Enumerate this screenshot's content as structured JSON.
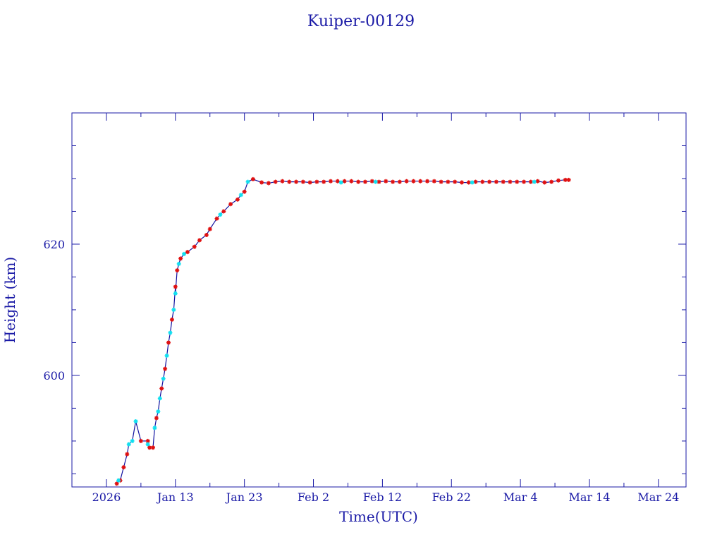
{
  "chart_data": {
    "type": "scatter",
    "title": "Kuiper-00129",
    "xlabel": "Time(UTC)",
    "ylabel": "Height (km)",
    "x_tick_labels": [
      "2026",
      "Jan 13",
      "Jan 23",
      "Feb  2",
      "Feb 12",
      "Feb 22",
      "Mar  4",
      "Mar 14",
      "Mar 24"
    ],
    "x_tick_dates": [
      "2026-01-03",
      "2026-01-13",
      "2026-01-23",
      "2026-02-02",
      "2026-02-12",
      "2026-02-22",
      "2026-03-04",
      "2026-03-14",
      "2026-03-24"
    ],
    "x_minor_tick_dates": [
      "2026-01-08",
      "2026-01-18",
      "2026-01-28",
      "2026-02-07",
      "2026-02-17",
      "2026-02-27",
      "2026-03-09",
      "2026-03-19"
    ],
    "xlim": [
      "2025-12-29",
      "2026-03-28"
    ],
    "y_tick_labels": [
      "600",
      "620"
    ],
    "y_major_ticks": [
      600,
      620
    ],
    "y_minor_ticks": [
      585,
      590,
      595,
      605,
      610,
      615,
      625,
      630,
      635
    ],
    "ylim": [
      583,
      640
    ],
    "grid": false,
    "colors": {
      "axis": "#1a1aa6",
      "line": "#1010a0",
      "marker_red": "#e01010",
      "marker_cyan": "#10e0f0"
    },
    "series": [
      {
        "marker": "red-star",
        "points": [
          [
            "2026-01-04T12:00",
            583.5
          ],
          [
            "2026-01-05T00:00",
            584.0
          ],
          [
            "2026-01-05T12:00",
            586.0
          ],
          [
            "2026-01-06T00:00",
            588.0
          ],
          [
            "2026-01-08T00:00",
            590.0
          ],
          [
            "2026-01-09T00:00",
            590.0
          ],
          [
            "2026-01-09T06:00",
            589.0
          ],
          [
            "2026-01-09T18:00",
            589.0
          ],
          [
            "2026-01-10T06:00",
            593.5
          ],
          [
            "2026-01-11T00:00",
            598.0
          ],
          [
            "2026-01-11T12:00",
            601.0
          ],
          [
            "2026-01-12T00:00",
            605.0
          ],
          [
            "2026-01-12T12:00",
            608.5
          ],
          [
            "2026-01-13T00:00",
            613.5
          ],
          [
            "2026-01-13T06:00",
            616.0
          ],
          [
            "2026-01-13T18:00",
            617.8
          ],
          [
            "2026-01-14T18:00",
            618.8
          ],
          [
            "2026-01-15T18:00",
            619.6
          ],
          [
            "2026-01-16T12:00",
            620.6
          ],
          [
            "2026-01-17T12:00",
            621.4
          ],
          [
            "2026-01-18T00:00",
            622.3
          ],
          [
            "2026-01-19T00:00",
            623.9
          ],
          [
            "2026-01-20T00:00",
            625.0
          ],
          [
            "2026-01-21T00:00",
            626.1
          ],
          [
            "2026-01-22T00:00",
            626.8
          ],
          [
            "2026-01-23T00:00",
            628.0
          ],
          [
            "2026-01-24T06:00",
            629.9
          ],
          [
            "2026-01-25T12:00",
            629.4
          ],
          [
            "2026-01-26T12:00",
            629.3
          ],
          [
            "2026-01-27T12:00",
            629.5
          ],
          [
            "2026-01-28T12:00",
            629.6
          ],
          [
            "2026-01-29T12:00",
            629.5
          ],
          [
            "2026-01-30T12:00",
            629.5
          ],
          [
            "2026-01-31T12:00",
            629.5
          ],
          [
            "2026-02-01T12:00",
            629.4
          ],
          [
            "2026-02-02T12:00",
            629.5
          ],
          [
            "2026-02-03T12:00",
            629.5
          ],
          [
            "2026-02-04T12:00",
            629.6
          ],
          [
            "2026-02-05T12:00",
            629.6
          ],
          [
            "2026-02-06T12:00",
            629.6
          ],
          [
            "2026-02-07T12:00",
            629.6
          ],
          [
            "2026-02-08T12:00",
            629.5
          ],
          [
            "2026-02-09T12:00",
            629.5
          ],
          [
            "2026-02-10T12:00",
            629.6
          ],
          [
            "2026-02-11T12:00",
            629.5
          ],
          [
            "2026-02-12T12:00",
            629.6
          ],
          [
            "2026-02-13T12:00",
            629.5
          ],
          [
            "2026-02-14T12:00",
            629.5
          ],
          [
            "2026-02-15T12:00",
            629.6
          ],
          [
            "2026-02-16T12:00",
            629.6
          ],
          [
            "2026-02-17T12:00",
            629.6
          ],
          [
            "2026-02-18T12:00",
            629.6
          ],
          [
            "2026-02-19T12:00",
            629.6
          ],
          [
            "2026-02-20T12:00",
            629.5
          ],
          [
            "2026-02-21T12:00",
            629.5
          ],
          [
            "2026-02-22T12:00",
            629.5
          ],
          [
            "2026-02-23T12:00",
            629.4
          ],
          [
            "2026-02-24T12:00",
            629.4
          ],
          [
            "2026-02-25T12:00",
            629.5
          ],
          [
            "2026-02-26T12:00",
            629.5
          ],
          [
            "2026-02-27T12:00",
            629.5
          ],
          [
            "2026-02-28T12:00",
            629.5
          ],
          [
            "2026-03-01T12:00",
            629.5
          ],
          [
            "2026-03-02T12:00",
            629.5
          ],
          [
            "2026-03-03T12:00",
            629.5
          ],
          [
            "2026-03-04T12:00",
            629.5
          ],
          [
            "2026-03-05T12:00",
            629.5
          ],
          [
            "2026-03-06T12:00",
            629.6
          ],
          [
            "2026-03-07T12:00",
            629.4
          ],
          [
            "2026-03-08T12:00",
            629.5
          ],
          [
            "2026-03-09T12:00",
            629.7
          ],
          [
            "2026-03-10T12:00",
            629.8
          ],
          [
            "2026-03-11T00:00",
            629.8
          ]
        ]
      },
      {
        "marker": "cyan-star",
        "points": [
          [
            "2026-01-04T18:00",
            584.0
          ],
          [
            "2026-01-06T06:00",
            589.5
          ],
          [
            "2026-01-06T18:00",
            590.0
          ],
          [
            "2026-01-07T06:00",
            593.0
          ],
          [
            "2026-01-09T00:00",
            589.5
          ],
          [
            "2026-01-10T00:00",
            592.0
          ],
          [
            "2026-01-10T12:00",
            594.5
          ],
          [
            "2026-01-10T18:00",
            596.5
          ],
          [
            "2026-01-11T06:00",
            599.5
          ],
          [
            "2026-01-11T18:00",
            603.0
          ],
          [
            "2026-01-12T06:00",
            606.5
          ],
          [
            "2026-01-12T18:00",
            610.0
          ],
          [
            "2026-01-13T00:00",
            612.5
          ],
          [
            "2026-01-13T12:00",
            617.0
          ],
          [
            "2026-01-14T06:00",
            618.5
          ],
          [
            "2026-01-19T12:00",
            624.5
          ],
          [
            "2026-01-22T12:00",
            627.5
          ],
          [
            "2026-01-23T12:00",
            629.5
          ],
          [
            "2026-02-06T00:00",
            629.4
          ],
          [
            "2026-02-11T00:00",
            629.5
          ],
          [
            "2026-02-25T00:00",
            629.4
          ],
          [
            "2026-03-06T00:00",
            629.5
          ]
        ]
      }
    ]
  }
}
